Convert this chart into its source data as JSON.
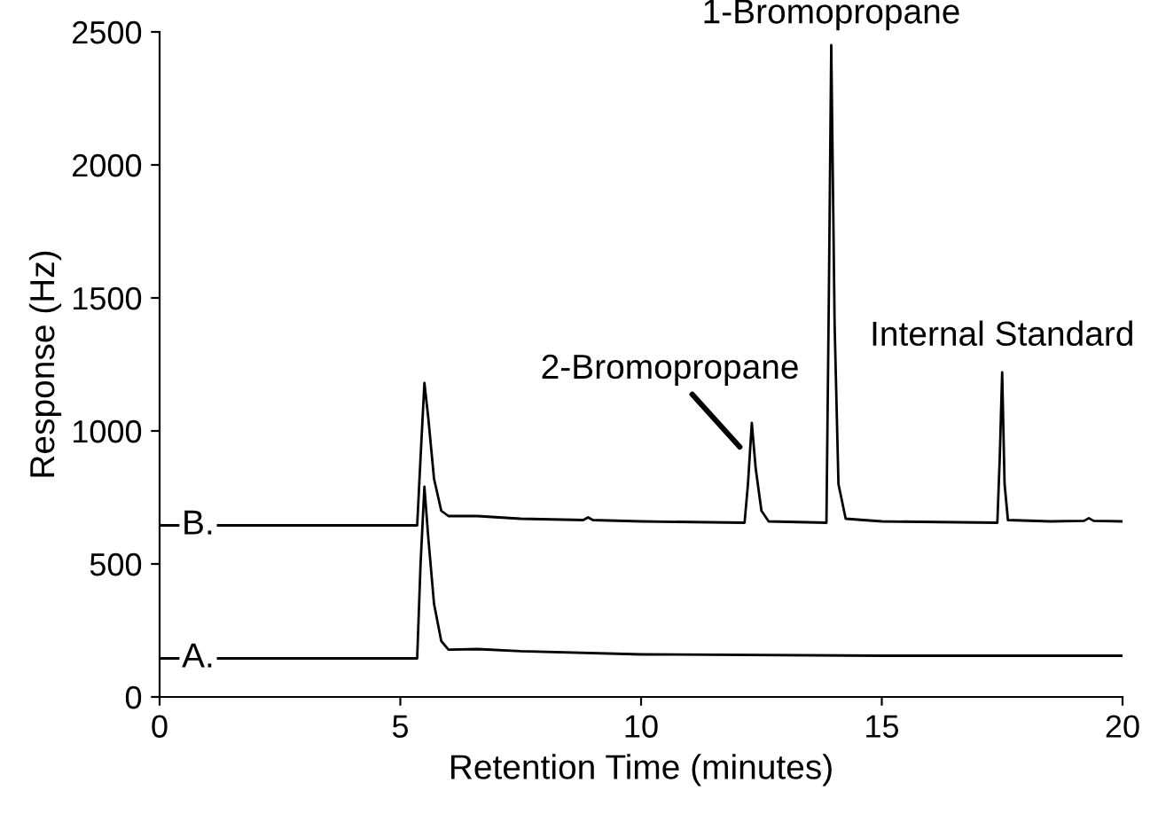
{
  "chart_data": {
    "type": "line",
    "xlabel": "Retention Time (minutes)",
    "ylabel": "Response (Hz)",
    "xlim": [
      0,
      20
    ],
    "ylim": [
      0,
      2500
    ],
    "xticks": [
      0,
      5,
      10,
      15,
      20
    ],
    "yticks": [
      0,
      500,
      1000,
      1500,
      2000,
      2500
    ],
    "grid": false,
    "legend": false,
    "marker": "none",
    "line_style": "solid",
    "series": [
      {
        "name": "B.",
        "color": "#000000",
        "x": [
          0,
          5.35,
          5.42,
          5.5,
          5.58,
          5.7,
          5.85,
          6.0,
          6.6,
          7.5,
          8.8,
          8.9,
          9.0,
          10,
          12.15,
          12.22,
          12.3,
          12.38,
          12.5,
          12.65,
          13.85,
          13.9,
          13.95,
          14.02,
          14.1,
          14.25,
          15,
          17.4,
          17.45,
          17.5,
          17.55,
          17.62,
          18.5,
          19.2,
          19.3,
          19.4,
          20
        ],
        "values": [
          645,
          645,
          900,
          1180,
          1050,
          820,
          700,
          680,
          680,
          670,
          665,
          675,
          665,
          660,
          655,
          800,
          1030,
          860,
          700,
          660,
          655,
          1500,
          2450,
          1400,
          800,
          670,
          660,
          655,
          900,
          1220,
          800,
          665,
          660,
          662,
          672,
          662,
          660
        ]
      },
      {
        "name": "A.",
        "color": "#000000",
        "x": [
          0,
          5.35,
          5.42,
          5.5,
          5.58,
          5.7,
          5.85,
          6.0,
          6.6,
          7.5,
          10,
          15,
          20
        ],
        "values": [
          145,
          145,
          500,
          790,
          600,
          350,
          210,
          178,
          180,
          172,
          160,
          155,
          155
        ]
      }
    ],
    "annotations": [
      {
        "text": "1-Bromopropane",
        "x": 13.95,
        "y": 2450
      },
      {
        "text": "2-Bromopropane",
        "x": 12.3,
        "y": 1030
      },
      {
        "text": "Internal Standard",
        "x": 17.5,
        "y": 1220
      }
    ]
  }
}
